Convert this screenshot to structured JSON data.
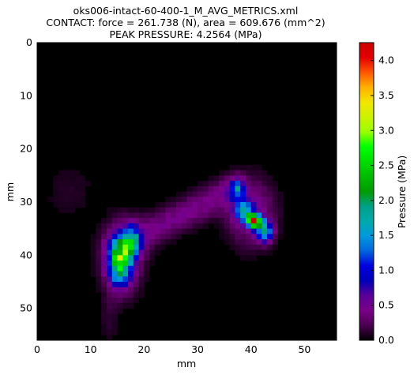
{
  "chart_data": {
    "type": "heatmap",
    "title_lines": [
      "oks006-intact-60-400-1_M_AVG_METRICS.xml",
      "CONTACT: force = 261.738 (N), area = 609.676 (mm^2)",
      "PEAK PRESSURE: 4.2564 (MPa)"
    ],
    "xlabel": "mm",
    "ylabel": "mm",
    "xlim": [
      0,
      56
    ],
    "ylim": [
      56,
      0
    ],
    "x_ticks": [
      "0",
      "10",
      "20",
      "30",
      "40",
      "50"
    ],
    "y_ticks": [
      "0",
      "10",
      "20",
      "30",
      "40",
      "50"
    ],
    "colorbar": {
      "label": "Pressure (MPa)",
      "range": [
        0,
        4.2564
      ],
      "ticks": [
        "0.0",
        "0.5",
        "1.0",
        "1.5",
        "2.0",
        "2.5",
        "3.0",
        "3.5",
        "4.0"
      ],
      "colormap": "nipy_spectral"
    },
    "grid_cell_mm": 1,
    "hotspots_mpa": [
      {
        "x": 15.5,
        "y": 41.5,
        "peak": 2.6
      },
      {
        "x": 17.5,
        "y": 37.5,
        "peak": 1.8
      },
      {
        "x": 40.5,
        "y": 33.5,
        "peak": 4.2564
      },
      {
        "x": 37.5,
        "y": 27.5,
        "peak": 1.2
      },
      {
        "x": 42.5,
        "y": 35.5,
        "peak": 2.9
      }
    ],
    "grid": false,
    "legend": "none"
  }
}
